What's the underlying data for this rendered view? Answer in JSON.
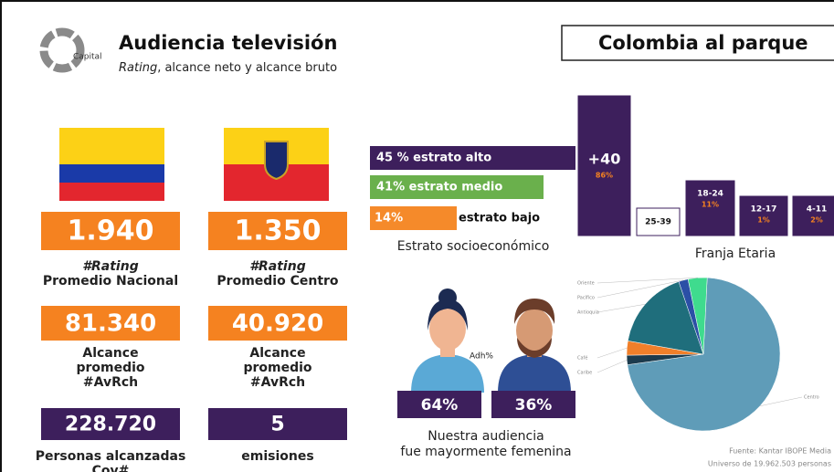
{
  "header": {
    "logo": "Capital",
    "title": "Audiencia televisión",
    "subtitle_em": "Rating",
    "subtitle_rest": ", alcance neto y alcance bruto",
    "banner": "Colombia al parque"
  },
  "kpis": [
    {
      "value": "1.940",
      "lines": [
        "#Rating",
        "Promedio Nacional"
      ]
    },
    {
      "value": "1.350",
      "lines": [
        "#Rating",
        "Promedio Centro"
      ]
    },
    {
      "value": "81.340",
      "lines": [
        "Alcance",
        "promedio",
        "#AvRch"
      ]
    },
    {
      "value": "40.920",
      "lines": [
        "Alcance",
        "promedio",
        "#AvRch"
      ]
    },
    {
      "value": "228.720",
      "lines": [
        "Personas alcanzadas",
        "Cov#"
      ]
    },
    {
      "value": "5",
      "lines": [
        "emisiones"
      ]
    }
  ],
  "estrato": {
    "items": [
      "45 % estrato alto",
      "41% estrato medio",
      "14%",
      "estrato bajo"
    ],
    "caption": "Estrato socioeconómico"
  },
  "franja": {
    "groups": [
      {
        "label": "+40",
        "pct": "86%"
      },
      {
        "label": "25-39"
      },
      {
        "label": "18-24",
        "pct": "11%"
      },
      {
        "label": "12-17",
        "pct": "1%"
      },
      {
        "label": "4-11",
        "pct": "2%"
      }
    ],
    "caption": "Franja Etaria"
  },
  "genero": {
    "label": "Adh%",
    "female": "64%",
    "male": "36%",
    "caption": [
      "Nuestra audiencia",
      "fue mayormente femenina"
    ]
  },
  "pie": {
    "labels": [
      "Centro",
      "Caribe",
      "Café",
      "Antioquia",
      "Pacífico",
      "Oriente"
    ],
    "values": [
      72,
      2,
      3,
      17,
      2,
      4
    ],
    "colors": [
      "#5f9cb8",
      "#1c3b4d",
      "#f07f2a",
      "#1f6e7c",
      "#2b4fa6",
      "#3fdb8e"
    ]
  },
  "footer": [
    "Fuente: Kantar IBOPE Media",
    "Universo de 19.962.503 personas"
  ]
}
